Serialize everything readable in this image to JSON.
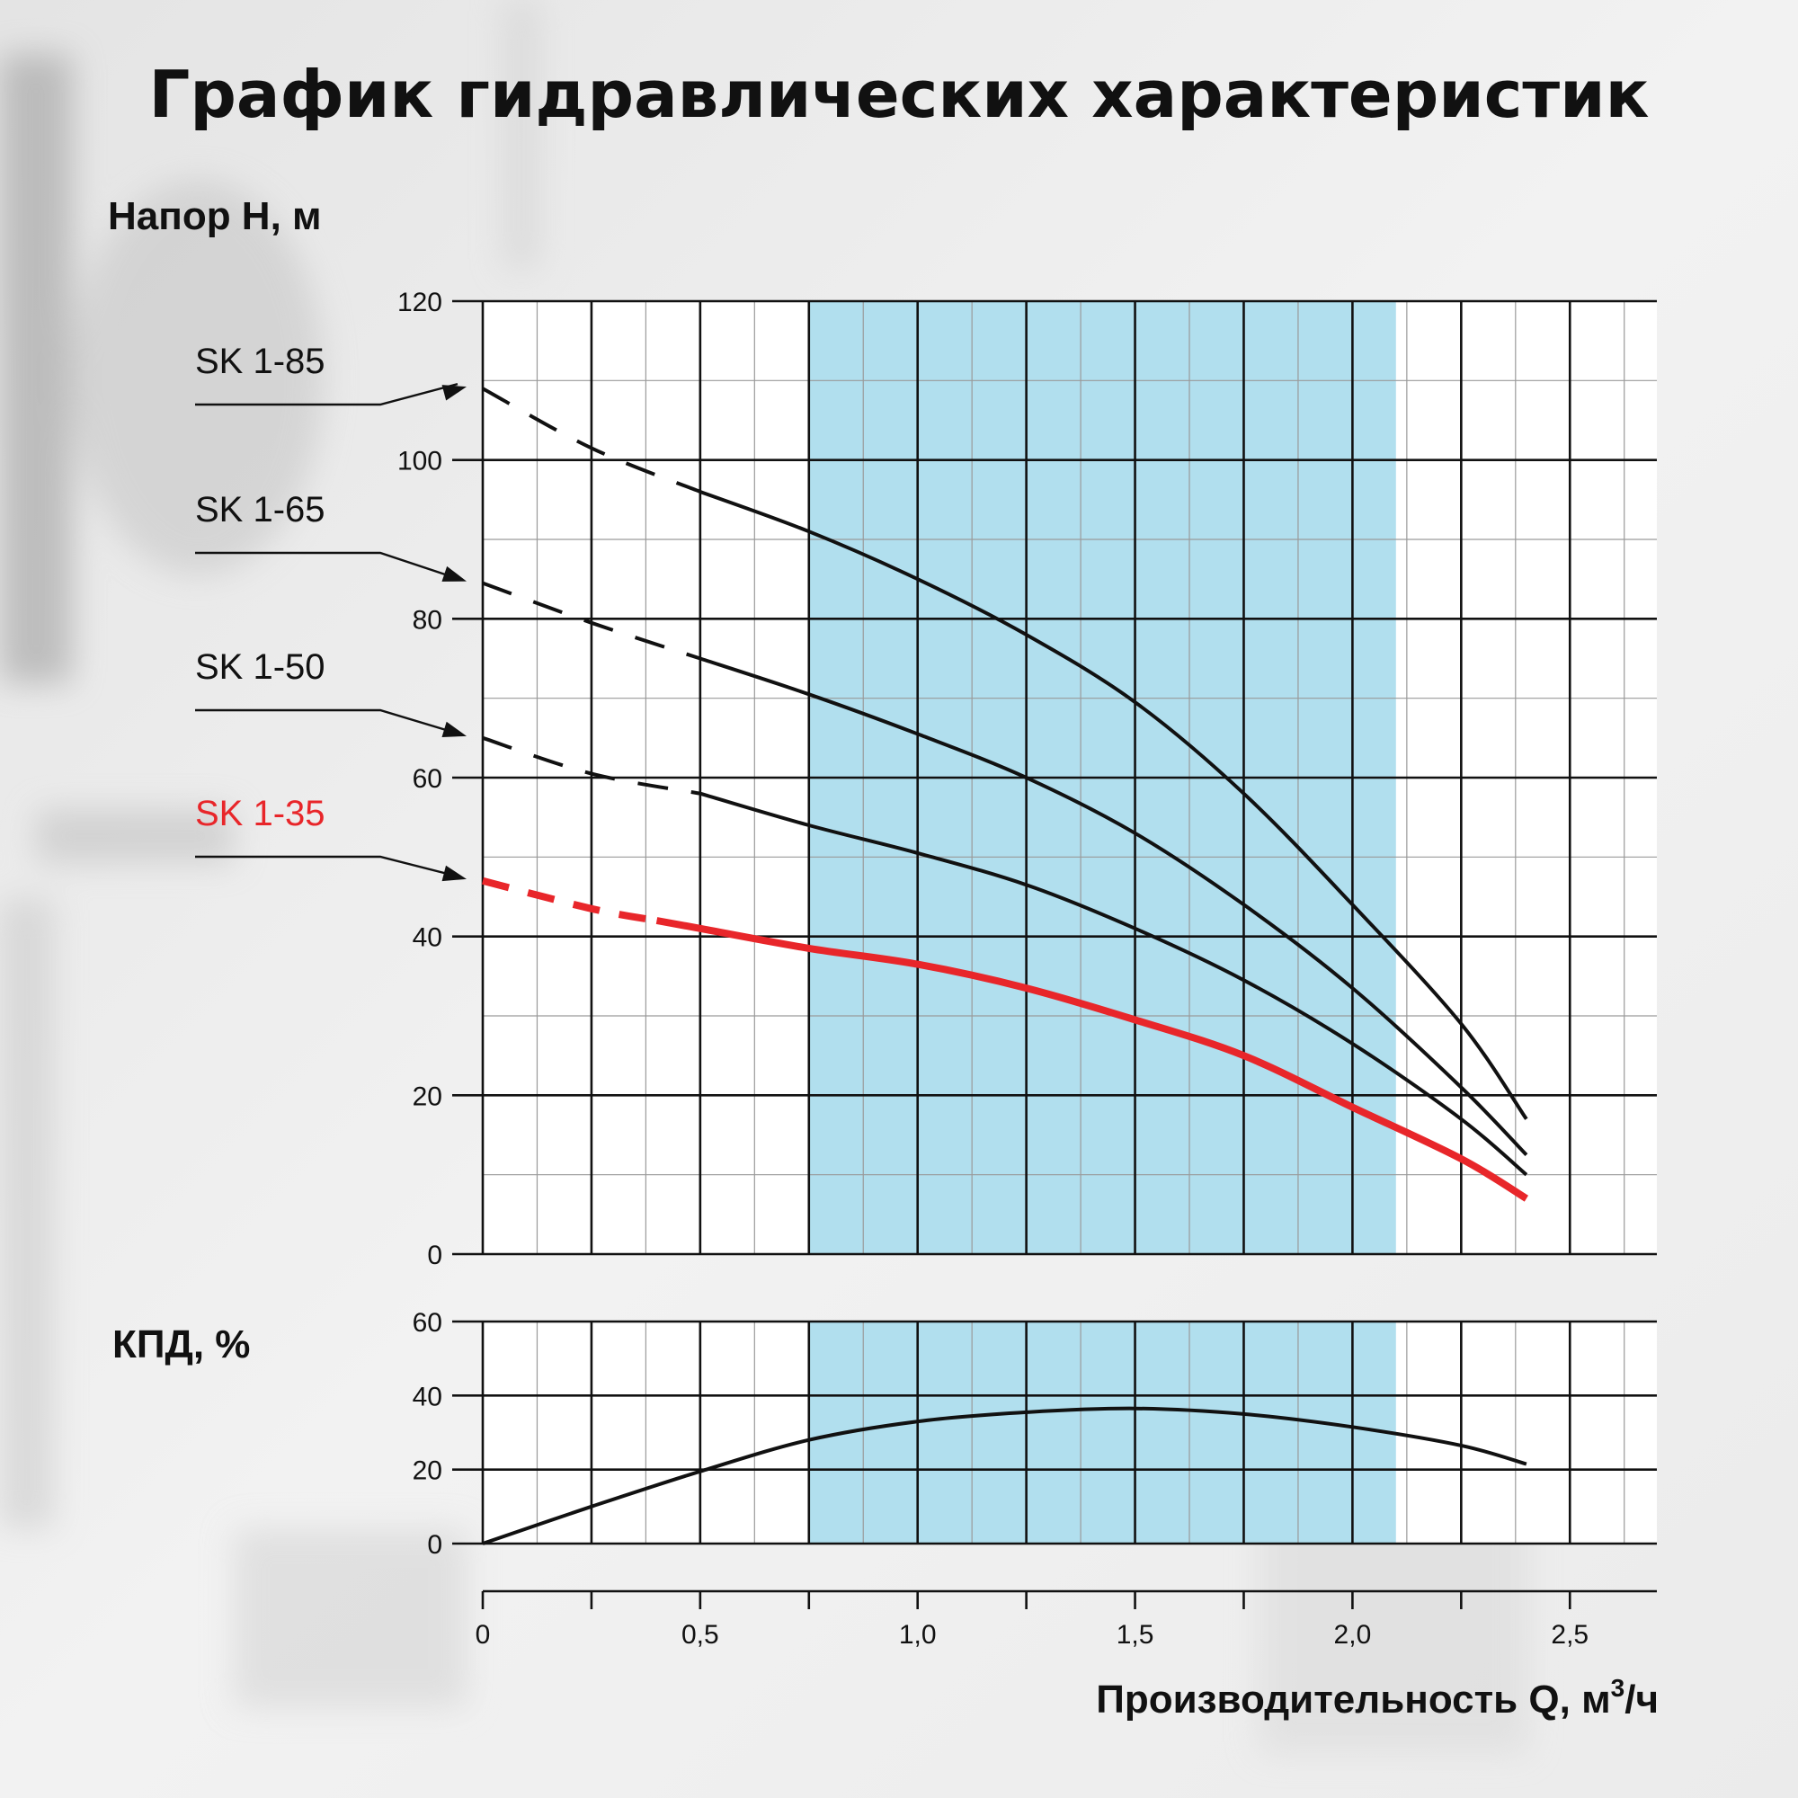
{
  "title": "График гидравлических характеристик",
  "colors": {
    "band": "#b1dfee",
    "curve": "#111111",
    "highlight": "#e8262a",
    "grid": "#111111",
    "minor_grid": "#9a9a9a"
  },
  "chart_data": [
    {
      "type": "line",
      "ylabel": "Напор H, м",
      "xlim": [
        0,
        2.7
      ],
      "ylim": [
        0,
        120
      ],
      "y_ticks": [
        "0",
        "20",
        "40",
        "60",
        "80",
        "100",
        "120"
      ],
      "y_tick_values": [
        0,
        20,
        40,
        60,
        80,
        100,
        120
      ],
      "band": [
        0.75,
        2.1
      ],
      "grid": true,
      "series": [
        {
          "name": "SK 1-85",
          "highlight": false,
          "dashed": [
            [
              0,
              109
            ],
            [
              0.25,
              101.5
            ],
            [
              0.5,
              96
            ]
          ],
          "solid": [
            [
              0.5,
              96
            ],
            [
              0.75,
              91
            ],
            [
              1.0,
              85
            ],
            [
              1.25,
              78
            ],
            [
              1.5,
              69.5
            ],
            [
              1.75,
              58
            ],
            [
              2.0,
              44
            ],
            [
              2.25,
              29
            ],
            [
              2.4,
              17
            ]
          ]
        },
        {
          "name": "SK 1-65",
          "highlight": false,
          "dashed": [
            [
              0,
              84.5
            ],
            [
              0.25,
              79.5
            ],
            [
              0.5,
              75
            ]
          ],
          "solid": [
            [
              0.5,
              75
            ],
            [
              0.75,
              70.5
            ],
            [
              1.0,
              65.5
            ],
            [
              1.25,
              60
            ],
            [
              1.5,
              53
            ],
            [
              1.75,
              44
            ],
            [
              2.0,
              33.5
            ],
            [
              2.25,
              21
            ],
            [
              2.4,
              12.5
            ]
          ]
        },
        {
          "name": "SK 1-50",
          "highlight": false,
          "dashed": [
            [
              0,
              65
            ],
            [
              0.25,
              60.5
            ],
            [
              0.5,
              58
            ]
          ],
          "solid": [
            [
              0.5,
              58
            ],
            [
              0.75,
              54
            ],
            [
              1.0,
              50.5
            ],
            [
              1.25,
              46.5
            ],
            [
              1.5,
              41
            ],
            [
              1.75,
              34.5
            ],
            [
              2.0,
              26.5
            ],
            [
              2.25,
              17
            ],
            [
              2.4,
              10
            ]
          ]
        },
        {
          "name": "SK 1-35",
          "highlight": true,
          "dashed": [
            [
              0,
              47
            ],
            [
              0.25,
              43.5
            ],
            [
              0.4,
              42
            ]
          ],
          "solid": [
            [
              0.4,
              42
            ],
            [
              0.5,
              41
            ],
            [
              0.75,
              38.5
            ],
            [
              1.0,
              36.5
            ],
            [
              1.25,
              33.5
            ],
            [
              1.5,
              29.5
            ],
            [
              1.75,
              25
            ],
            [
              2.0,
              18.5
            ],
            [
              2.25,
              12
            ],
            [
              2.4,
              7
            ]
          ]
        }
      ]
    },
    {
      "type": "line",
      "ylabel": "КПД, %",
      "xlim": [
        0,
        2.7
      ],
      "ylim": [
        0,
        60
      ],
      "y_ticks": [
        "0",
        "20",
        "40",
        "60"
      ],
      "y_tick_values": [
        0,
        20,
        40,
        60
      ],
      "band": [
        0.75,
        2.1
      ],
      "grid": true,
      "series": [
        {
          "name": "",
          "points": [
            [
              0,
              0
            ],
            [
              0.25,
              10
            ],
            [
              0.5,
              19.5
            ],
            [
              0.75,
              28
            ],
            [
              1.0,
              33
            ],
            [
              1.25,
              35.5
            ],
            [
              1.5,
              36.5
            ],
            [
              1.75,
              35
            ],
            [
              2.0,
              31.5
            ],
            [
              2.25,
              26.5
            ],
            [
              2.4,
              21.5
            ]
          ]
        }
      ]
    }
  ],
  "x_axis": {
    "label_main": "Производительность Q, м",
    "label_sup": "3",
    "label_tail": "/ч",
    "ticks": [
      "0",
      "0,5",
      "1,0",
      "1,5",
      "2,0",
      "2,5"
    ],
    "tick_values": [
      0,
      0.5,
      1.0,
      1.5,
      2.0,
      2.5
    ]
  }
}
